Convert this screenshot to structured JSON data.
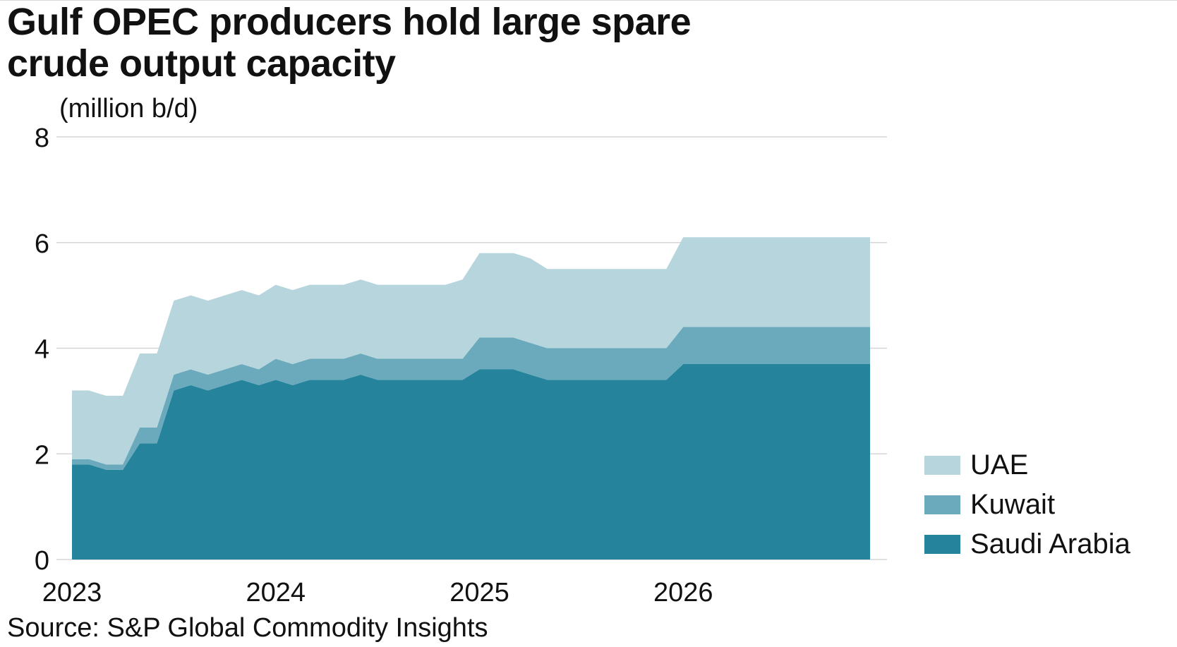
{
  "title_lines": [
    "Gulf OPEC producers hold large spare",
    "crude output capacity"
  ],
  "unit_label": "(million b/d)",
  "source": "Source: S&P Global Commodity Insights",
  "colors": {
    "saudi": "#25849c",
    "kuwait": "#6aaabc",
    "uae": "#b7d5dd",
    "grid": "#d6d6d6"
  },
  "chart_data": {
    "type": "area",
    "stacked": true,
    "title": "Gulf OPEC producers hold large spare crude output capacity",
    "ylabel": "(million b/d)",
    "xlabel": "",
    "ylim": [
      0,
      8
    ],
    "yticks": [
      0,
      2,
      4,
      6,
      8
    ],
    "xlim": [
      2023,
      2027
    ],
    "xticks": [
      {
        "value": 2023,
        "label": "2023"
      },
      {
        "value": 2024,
        "label": "2024"
      },
      {
        "value": 2025,
        "label": "2025"
      },
      {
        "value": 2026,
        "label": "2026"
      }
    ],
    "grid": true,
    "legend_position": "right",
    "x": [
      2023.0,
      2023.083,
      2023.167,
      2023.25,
      2023.333,
      2023.417,
      2023.5,
      2023.583,
      2023.667,
      2023.75,
      2023.833,
      2023.917,
      2024.0,
      2024.083,
      2024.167,
      2024.25,
      2024.333,
      2024.417,
      2024.5,
      2024.583,
      2024.667,
      2024.75,
      2024.833,
      2024.917,
      2025.0,
      2025.083,
      2025.167,
      2025.25,
      2025.333,
      2025.417,
      2025.5,
      2025.583,
      2025.667,
      2025.75,
      2025.833,
      2025.917,
      2026.0,
      2026.083,
      2026.167,
      2026.25,
      2026.333,
      2026.417,
      2026.5,
      2026.583,
      2026.667,
      2026.75,
      2026.833,
      2026.917
    ],
    "series": [
      {
        "name": "Saudi Arabia",
        "values": [
          1.8,
          1.8,
          1.7,
          1.7,
          2.2,
          2.2,
          3.2,
          3.3,
          3.2,
          3.3,
          3.4,
          3.3,
          3.4,
          3.3,
          3.4,
          3.4,
          3.4,
          3.5,
          3.4,
          3.4,
          3.4,
          3.4,
          3.4,
          3.4,
          3.6,
          3.6,
          3.6,
          3.5,
          3.4,
          3.4,
          3.4,
          3.4,
          3.4,
          3.4,
          3.4,
          3.4,
          3.7,
          3.7,
          3.7,
          3.7,
          3.7,
          3.7,
          3.7,
          3.7,
          3.7,
          3.7,
          3.7,
          3.7
        ]
      },
      {
        "name": "Kuwait",
        "values": [
          0.1,
          0.1,
          0.1,
          0.1,
          0.3,
          0.3,
          0.3,
          0.3,
          0.3,
          0.3,
          0.3,
          0.3,
          0.4,
          0.4,
          0.4,
          0.4,
          0.4,
          0.4,
          0.4,
          0.4,
          0.4,
          0.4,
          0.4,
          0.4,
          0.6,
          0.6,
          0.6,
          0.6,
          0.6,
          0.6,
          0.6,
          0.6,
          0.6,
          0.6,
          0.6,
          0.6,
          0.7,
          0.7,
          0.7,
          0.7,
          0.7,
          0.7,
          0.7,
          0.7,
          0.7,
          0.7,
          0.7,
          0.7
        ]
      },
      {
        "name": "UAE",
        "values": [
          1.3,
          1.3,
          1.3,
          1.3,
          1.4,
          1.4,
          1.4,
          1.4,
          1.4,
          1.4,
          1.4,
          1.4,
          1.4,
          1.4,
          1.4,
          1.4,
          1.4,
          1.4,
          1.4,
          1.4,
          1.4,
          1.4,
          1.4,
          1.5,
          1.6,
          1.6,
          1.6,
          1.6,
          1.5,
          1.5,
          1.5,
          1.5,
          1.5,
          1.5,
          1.5,
          1.5,
          1.7,
          1.7,
          1.7,
          1.7,
          1.7,
          1.7,
          1.7,
          1.7,
          1.7,
          1.7,
          1.7,
          1.7
        ]
      }
    ]
  },
  "legend": [
    {
      "label": "UAE",
      "color": "#b7d5dd"
    },
    {
      "label": "Kuwait",
      "color": "#6aaabc"
    },
    {
      "label": "Saudi Arabia",
      "color": "#25849c"
    }
  ]
}
